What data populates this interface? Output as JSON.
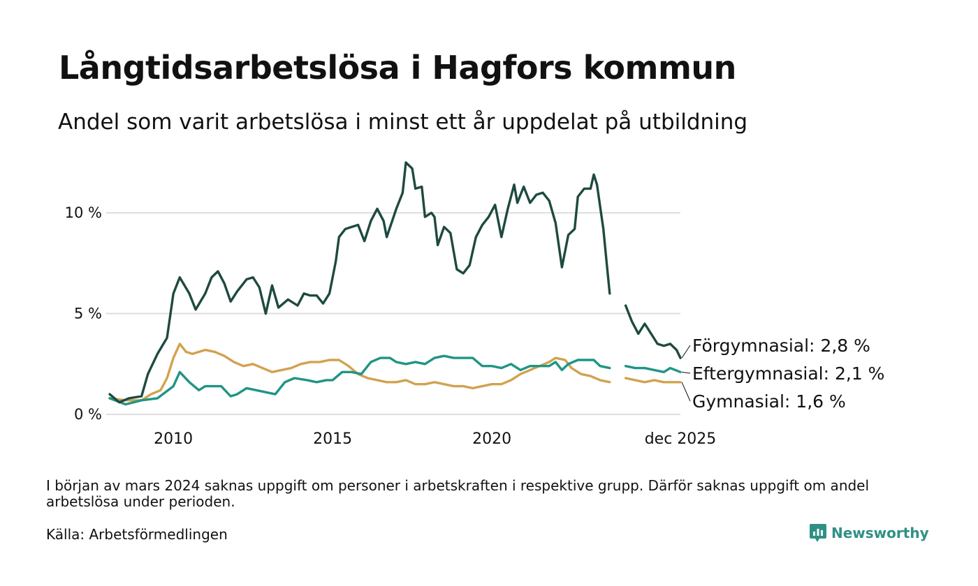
{
  "header": {
    "title": "Långtidsarbetslösa i Hagfors kommun",
    "subtitle": "Andel som varit arbetslösa i minst ett år uppdelat på utbildning"
  },
  "footer": {
    "note": "I början av mars 2024 saknas uppgift om personer i arbetskraften i respektive grupp. Därför saknas uppgift om andel arbetslösa under perioden.",
    "source": "Källa: Arbetsförmedlingen",
    "brand": "Newsworthy",
    "brand_icon": "newsworthy-logo-icon"
  },
  "colors": {
    "forgymnasial": "#1e4a40",
    "eftergymnasial": "#1f9585",
    "gymnasial": "#d1a250",
    "grid": "#dedede"
  },
  "chart_data": {
    "type": "line",
    "title": "Långtidsarbetslösa i Hagfors kommun",
    "subtitle": "Andel som varit arbetslösa i minst ett år uppdelat på utbildning",
    "xlabel": "",
    "ylabel": "",
    "xlim": [
      2008.0,
      2025.92
    ],
    "ylim": [
      0,
      12.6
    ],
    "grid": true,
    "y_ticks": [
      {
        "value": 0,
        "label": "0 %"
      },
      {
        "value": 5,
        "label": "5 %"
      },
      {
        "value": 10,
        "label": "10 %"
      }
    ],
    "x_ticks": [
      {
        "value": 2010,
        "label": "2010"
      },
      {
        "value": 2015,
        "label": "2015"
      },
      {
        "value": 2020,
        "label": "2020"
      },
      {
        "value": 2025.92,
        "label": "dec 2025"
      }
    ],
    "gap": [
      2023.7,
      2024.2
    ],
    "series": [
      {
        "key": "forgymnasial",
        "name": "Förgymnasial",
        "end_label": "Förgymnasial: 2,8 %",
        "last_value": 2.8,
        "points": [
          [
            2008.0,
            1.0
          ],
          [
            2008.3,
            0.6
          ],
          [
            2008.6,
            0.8
          ],
          [
            2009.0,
            0.9
          ],
          [
            2009.2,
            2.0
          ],
          [
            2009.5,
            3.0
          ],
          [
            2009.8,
            3.8
          ],
          [
            2010.0,
            6.0
          ],
          [
            2010.2,
            6.8
          ],
          [
            2010.5,
            6.0
          ],
          [
            2010.7,
            5.2
          ],
          [
            2011.0,
            6.0
          ],
          [
            2011.2,
            6.8
          ],
          [
            2011.4,
            7.1
          ],
          [
            2011.6,
            6.5
          ],
          [
            2011.8,
            5.6
          ],
          [
            2012.0,
            6.1
          ],
          [
            2012.3,
            6.7
          ],
          [
            2012.5,
            6.8
          ],
          [
            2012.7,
            6.3
          ],
          [
            2012.9,
            5.0
          ],
          [
            2013.1,
            6.4
          ],
          [
            2013.3,
            5.3
          ],
          [
            2013.6,
            5.7
          ],
          [
            2013.9,
            5.4
          ],
          [
            2014.1,
            6.0
          ],
          [
            2014.3,
            5.9
          ],
          [
            2014.5,
            5.9
          ],
          [
            2014.7,
            5.5
          ],
          [
            2014.9,
            6.0
          ],
          [
            2015.1,
            7.6
          ],
          [
            2015.2,
            8.8
          ],
          [
            2015.4,
            9.2
          ],
          [
            2015.6,
            9.3
          ],
          [
            2015.8,
            9.4
          ],
          [
            2016.0,
            8.6
          ],
          [
            2016.2,
            9.6
          ],
          [
            2016.4,
            10.2
          ],
          [
            2016.6,
            9.6
          ],
          [
            2016.7,
            8.8
          ],
          [
            2017.0,
            10.2
          ],
          [
            2017.2,
            11.0
          ],
          [
            2017.3,
            12.5
          ],
          [
            2017.5,
            12.2
          ],
          [
            2017.6,
            11.2
          ],
          [
            2017.8,
            11.3
          ],
          [
            2017.9,
            9.8
          ],
          [
            2018.1,
            10.0
          ],
          [
            2018.2,
            9.8
          ],
          [
            2018.3,
            8.4
          ],
          [
            2018.5,
            9.3
          ],
          [
            2018.7,
            9.0
          ],
          [
            2018.9,
            7.2
          ],
          [
            2019.1,
            7.0
          ],
          [
            2019.3,
            7.4
          ],
          [
            2019.5,
            8.8
          ],
          [
            2019.7,
            9.4
          ],
          [
            2019.9,
            9.8
          ],
          [
            2020.1,
            10.4
          ],
          [
            2020.3,
            8.8
          ],
          [
            2020.5,
            10.2
          ],
          [
            2020.7,
            11.4
          ],
          [
            2020.8,
            10.5
          ],
          [
            2021.0,
            11.3
          ],
          [
            2021.2,
            10.5
          ],
          [
            2021.4,
            10.9
          ],
          [
            2021.6,
            11.0
          ],
          [
            2021.8,
            10.6
          ],
          [
            2022.0,
            9.5
          ],
          [
            2022.2,
            7.3
          ],
          [
            2022.4,
            8.9
          ],
          [
            2022.6,
            9.2
          ],
          [
            2022.7,
            10.8
          ],
          [
            2022.9,
            11.2
          ],
          [
            2023.1,
            11.2
          ],
          [
            2023.2,
            11.9
          ],
          [
            2023.3,
            11.4
          ],
          [
            2023.5,
            9.2
          ],
          [
            2023.6,
            7.6
          ],
          [
            2023.7,
            6.0
          ],
          null,
          [
            2024.2,
            5.4
          ],
          [
            2024.4,
            4.6
          ],
          [
            2024.6,
            4.0
          ],
          [
            2024.8,
            4.5
          ],
          [
            2025.0,
            4.0
          ],
          [
            2025.2,
            3.5
          ],
          [
            2025.4,
            3.4
          ],
          [
            2025.6,
            3.5
          ],
          [
            2025.8,
            3.2
          ],
          [
            2025.92,
            2.8
          ]
        ]
      },
      {
        "key": "eftergymnasial",
        "name": "Eftergymnasial",
        "end_label": "Eftergymnasial: 2,1 %",
        "last_value": 2.1,
        "points": [
          [
            2008.0,
            0.8
          ],
          [
            2008.5,
            0.5
          ],
          [
            2009.0,
            0.7
          ],
          [
            2009.5,
            0.8
          ],
          [
            2010.0,
            1.4
          ],
          [
            2010.2,
            2.1
          ],
          [
            2010.5,
            1.6
          ],
          [
            2010.8,
            1.2
          ],
          [
            2011.0,
            1.4
          ],
          [
            2011.5,
            1.4
          ],
          [
            2011.8,
            0.9
          ],
          [
            2012.0,
            1.0
          ],
          [
            2012.3,
            1.3
          ],
          [
            2012.6,
            1.2
          ],
          [
            2012.9,
            1.1
          ],
          [
            2013.2,
            1.0
          ],
          [
            2013.5,
            1.6
          ],
          [
            2013.8,
            1.8
          ],
          [
            2014.2,
            1.7
          ],
          [
            2014.5,
            1.6
          ],
          [
            2014.8,
            1.7
          ],
          [
            2015.0,
            1.7
          ],
          [
            2015.3,
            2.1
          ],
          [
            2015.6,
            2.1
          ],
          [
            2015.9,
            2.0
          ],
          [
            2016.2,
            2.6
          ],
          [
            2016.5,
            2.8
          ],
          [
            2016.8,
            2.8
          ],
          [
            2017.0,
            2.6
          ],
          [
            2017.3,
            2.5
          ],
          [
            2017.6,
            2.6
          ],
          [
            2017.9,
            2.5
          ],
          [
            2018.2,
            2.8
          ],
          [
            2018.5,
            2.9
          ],
          [
            2018.8,
            2.8
          ],
          [
            2019.1,
            2.8
          ],
          [
            2019.4,
            2.8
          ],
          [
            2019.7,
            2.4
          ],
          [
            2020.0,
            2.4
          ],
          [
            2020.3,
            2.3
          ],
          [
            2020.6,
            2.5
          ],
          [
            2020.9,
            2.2
          ],
          [
            2021.2,
            2.4
          ],
          [
            2021.5,
            2.4
          ],
          [
            2021.8,
            2.4
          ],
          [
            2022.0,
            2.6
          ],
          [
            2022.2,
            2.2
          ],
          [
            2022.4,
            2.5
          ],
          [
            2022.7,
            2.7
          ],
          [
            2023.0,
            2.7
          ],
          [
            2023.2,
            2.7
          ],
          [
            2023.4,
            2.4
          ],
          [
            2023.7,
            2.3
          ],
          null,
          [
            2024.2,
            2.4
          ],
          [
            2024.5,
            2.3
          ],
          [
            2024.8,
            2.3
          ],
          [
            2025.1,
            2.2
          ],
          [
            2025.4,
            2.1
          ],
          [
            2025.6,
            2.3
          ],
          [
            2025.92,
            2.1
          ]
        ]
      },
      {
        "key": "gymnasial",
        "name": "Gymnasial",
        "end_label": "Gymnasial: 1,6 %",
        "last_value": 1.6,
        "points": [
          [
            2008.0,
            0.8
          ],
          [
            2008.5,
            0.7
          ],
          [
            2009.0,
            0.7
          ],
          [
            2009.3,
            1.0
          ],
          [
            2009.6,
            1.2
          ],
          [
            2009.8,
            1.8
          ],
          [
            2010.0,
            2.8
          ],
          [
            2010.2,
            3.5
          ],
          [
            2010.4,
            3.1
          ],
          [
            2010.6,
            3.0
          ],
          [
            2010.8,
            3.1
          ],
          [
            2011.0,
            3.2
          ],
          [
            2011.3,
            3.1
          ],
          [
            2011.6,
            2.9
          ],
          [
            2011.9,
            2.6
          ],
          [
            2012.2,
            2.4
          ],
          [
            2012.5,
            2.5
          ],
          [
            2012.8,
            2.3
          ],
          [
            2013.1,
            2.1
          ],
          [
            2013.4,
            2.2
          ],
          [
            2013.7,
            2.3
          ],
          [
            2014.0,
            2.5
          ],
          [
            2014.3,
            2.6
          ],
          [
            2014.6,
            2.6
          ],
          [
            2014.9,
            2.7
          ],
          [
            2015.2,
            2.7
          ],
          [
            2015.5,
            2.4
          ],
          [
            2015.8,
            2.0
          ],
          [
            2016.1,
            1.8
          ],
          [
            2016.4,
            1.7
          ],
          [
            2016.7,
            1.6
          ],
          [
            2017.0,
            1.6
          ],
          [
            2017.3,
            1.7
          ],
          [
            2017.6,
            1.5
          ],
          [
            2017.9,
            1.5
          ],
          [
            2018.2,
            1.6
          ],
          [
            2018.5,
            1.5
          ],
          [
            2018.8,
            1.4
          ],
          [
            2019.1,
            1.4
          ],
          [
            2019.4,
            1.3
          ],
          [
            2019.7,
            1.4
          ],
          [
            2020.0,
            1.5
          ],
          [
            2020.3,
            1.5
          ],
          [
            2020.6,
            1.7
          ],
          [
            2020.9,
            2.0
          ],
          [
            2021.2,
            2.2
          ],
          [
            2021.5,
            2.4
          ],
          [
            2021.8,
            2.6
          ],
          [
            2022.0,
            2.8
          ],
          [
            2022.3,
            2.7
          ],
          [
            2022.5,
            2.3
          ],
          [
            2022.8,
            2.0
          ],
          [
            2023.1,
            1.9
          ],
          [
            2023.4,
            1.7
          ],
          [
            2023.7,
            1.6
          ],
          null,
          [
            2024.2,
            1.8
          ],
          [
            2024.5,
            1.7
          ],
          [
            2024.8,
            1.6
          ],
          [
            2025.1,
            1.7
          ],
          [
            2025.4,
            1.6
          ],
          [
            2025.7,
            1.6
          ],
          [
            2025.92,
            1.6
          ]
        ]
      }
    ]
  }
}
